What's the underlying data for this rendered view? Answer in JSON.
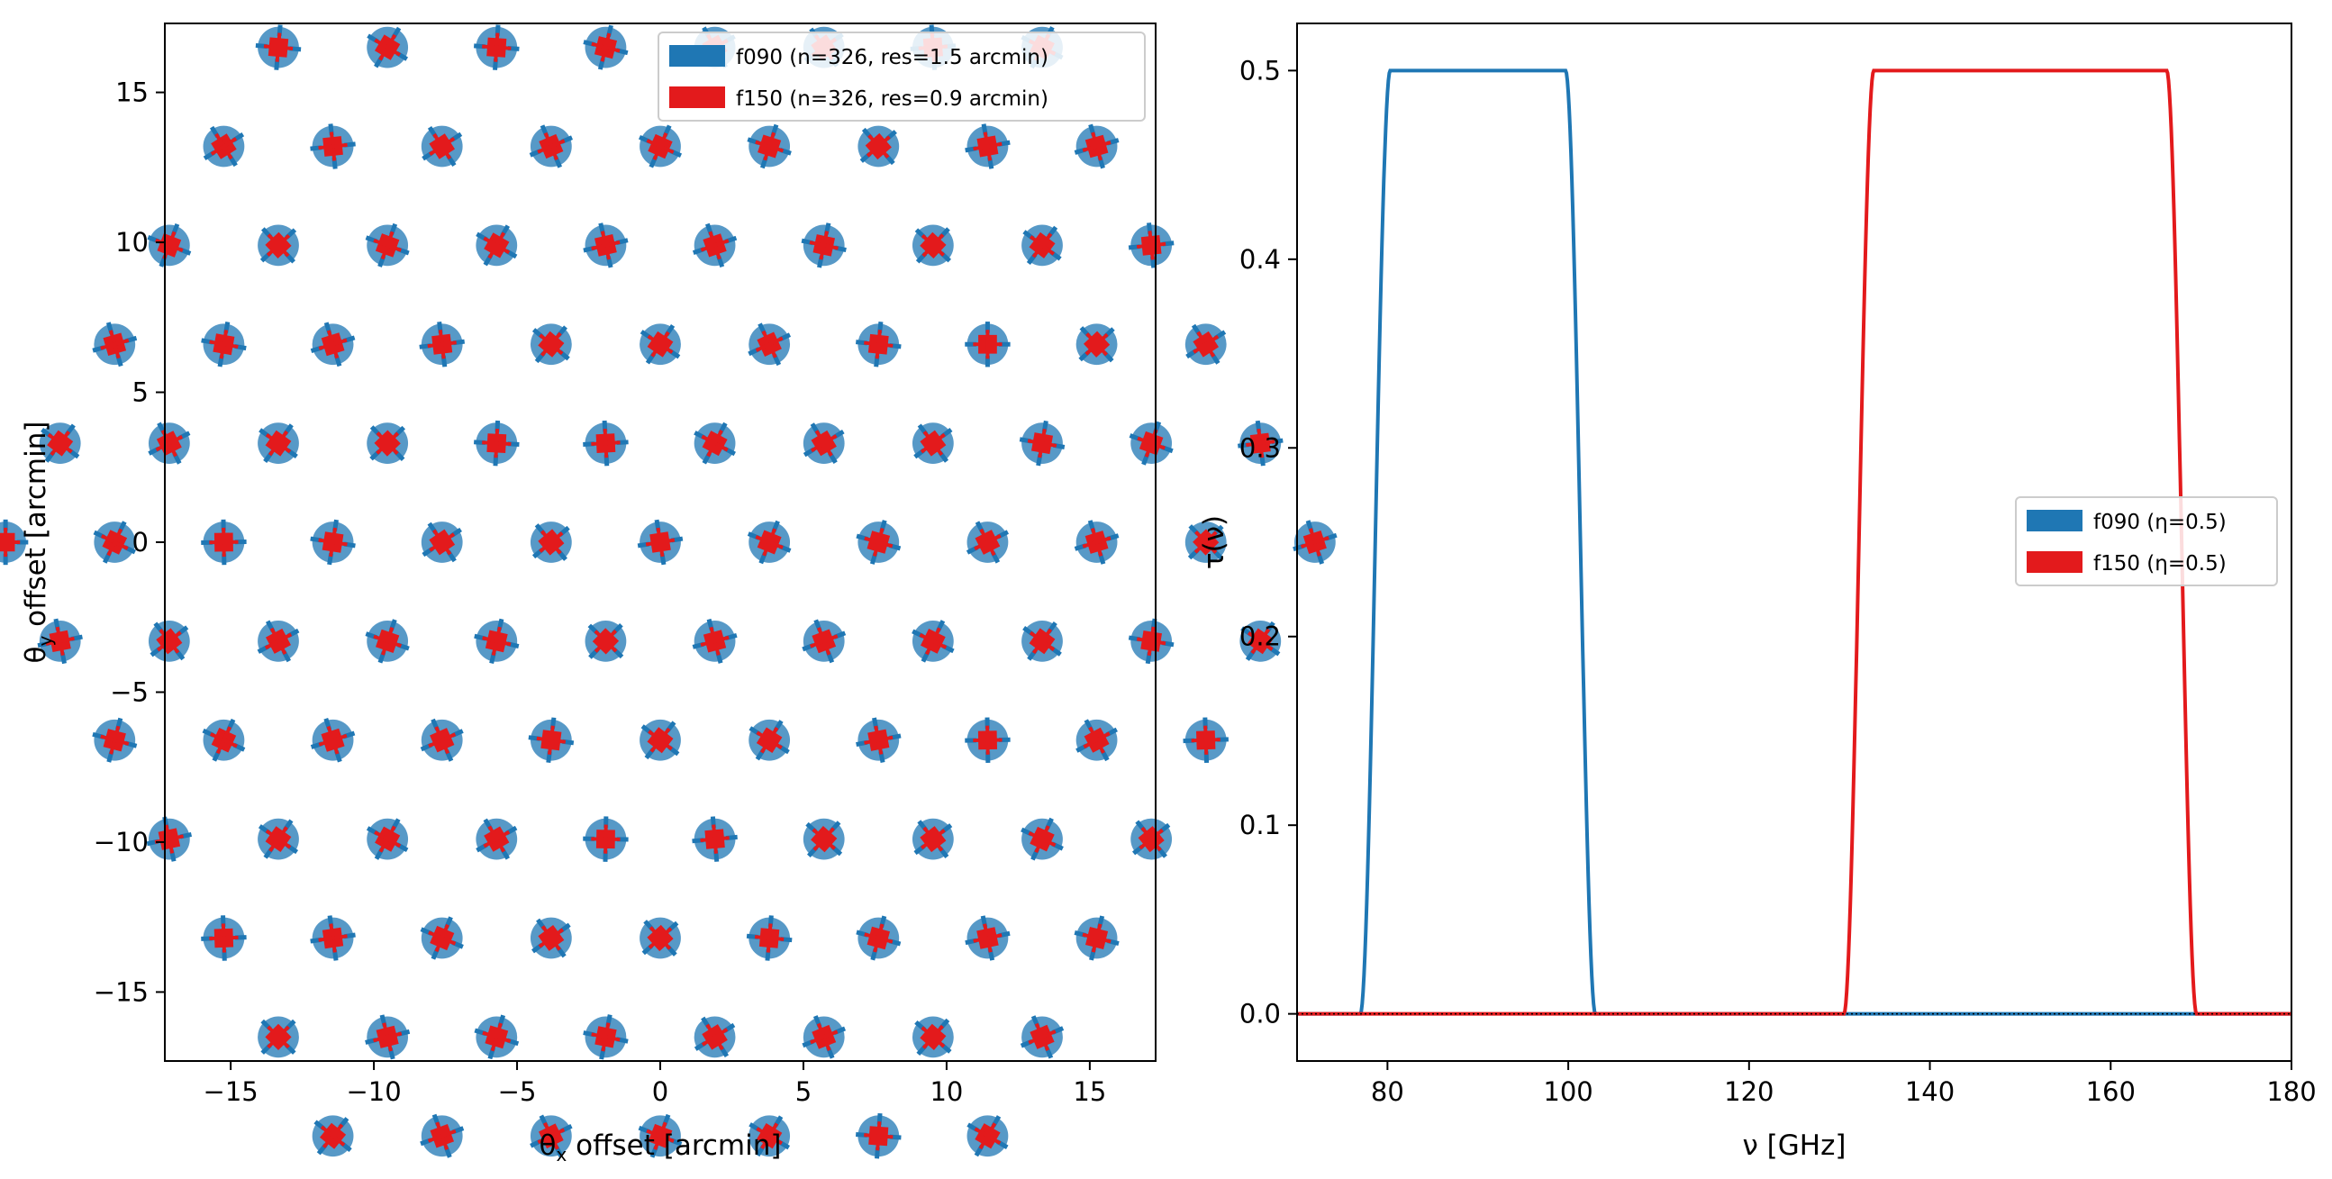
{
  "chart_data": [
    {
      "type": "scatter",
      "xlabel": "θx offset [arcmin]",
      "ylabel": "θy offset [arcmin]",
      "xlim": [
        -17.3,
        17.3
      ],
      "ylim": [
        -17.3,
        17.3
      ],
      "xticks": [
        -15,
        -10,
        -5,
        0,
        5,
        10,
        15
      ],
      "yticks": [
        -15,
        -10,
        -5,
        0,
        5,
        10,
        15
      ],
      "xtick_labels": [
        "−15",
        "−10",
        "−5",
        "0",
        "5",
        "10",
        "15"
      ],
      "ytick_labels": [
        "−15",
        "−10",
        "−5",
        "0",
        "5",
        "10",
        "15"
      ],
      "grid": false,
      "legend_position": "top-right",
      "layout": "hexagonal feedhorn array, 7 rings, spacing 2.2 arcmin",
      "rings": 7,
      "spacing_arcmin": 2.2,
      "series": [
        {
          "name": "f090 (n=326, res=1.5 arcmin)",
          "color": "#1f77b4",
          "beam_fwhm_arcmin": 1.5
        },
        {
          "name": "f150 (n=326, res=0.9 arcmin)",
          "color": "#e31a1c",
          "beam_fwhm_arcmin": 0.9
        }
      ]
    },
    {
      "type": "line",
      "xlabel": "ν [GHz]",
      "ylabel": "τ(ν)",
      "xlim": [
        70,
        180
      ],
      "ylim": [
        -0.025,
        0.525
      ],
      "xticks": [
        80,
        100,
        120,
        140,
        160,
        180
      ],
      "yticks": [
        0.0,
        0.1,
        0.2,
        0.3,
        0.4,
        0.5
      ],
      "xtick_labels": [
        "80",
        "100",
        "120",
        "140",
        "160",
        "180"
      ],
      "ytick_labels": [
        "0.0",
        "0.1",
        "0.2",
        "0.3",
        "0.4",
        "0.5"
      ],
      "grid": false,
      "legend_position": "center-right",
      "series": [
        {
          "name": "f090 (η=0.5)",
          "color": "#1f77b4",
          "band_edges_ghz": [
            77,
            103
          ],
          "center_ghz": 90,
          "eta": 0.5
        },
        {
          "name": "f150 (η=0.5)",
          "color": "#e31a1c",
          "band_edges_ghz": [
            130.5,
            169.5
          ],
          "center_ghz": 150,
          "eta": 0.5
        }
      ]
    }
  ]
}
